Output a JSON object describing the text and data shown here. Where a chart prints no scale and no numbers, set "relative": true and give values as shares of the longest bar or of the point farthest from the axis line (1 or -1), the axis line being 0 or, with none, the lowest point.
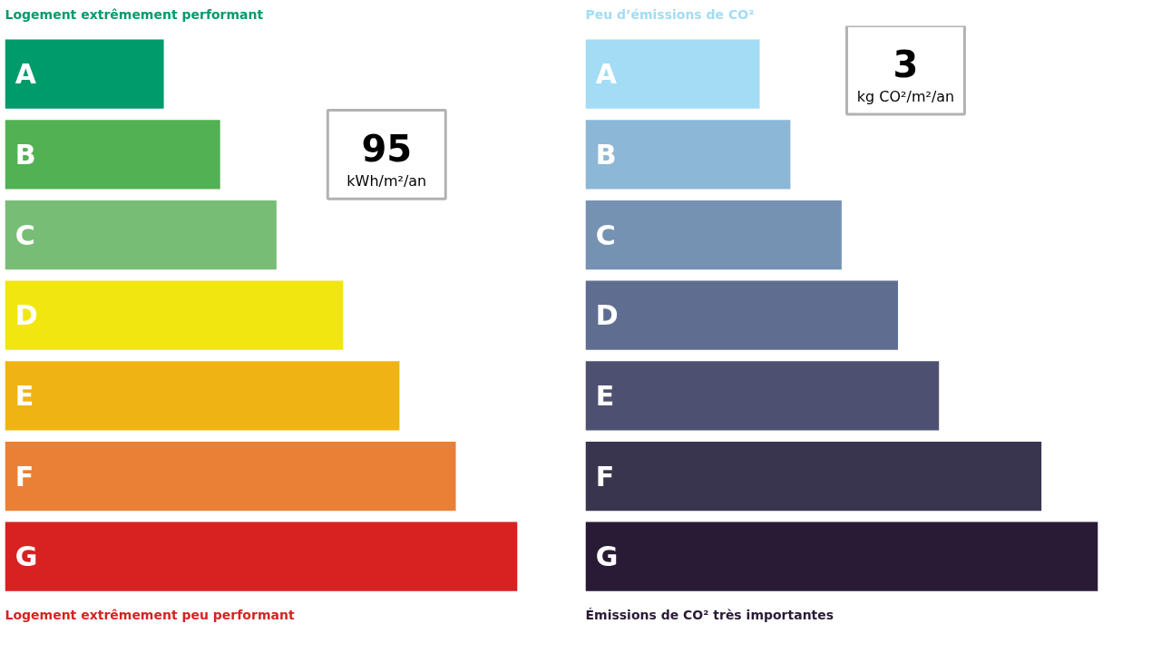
{
  "chart_data": [
    {
      "type": "bar",
      "orientation": "horizontal",
      "relative": true,
      "title": "Logement extrêmement performant",
      "categories": [
        "A",
        "B",
        "C",
        "D",
        "E",
        "F",
        "G"
      ],
      "values": [
        0.31,
        0.42,
        0.53,
        0.66,
        0.77,
        0.88,
        1
      ],
      "colors": [
        "#009b6b",
        "#52b153",
        "#78bd76",
        "#f2e611",
        "#efb414",
        "#ea8035",
        "#d72221"
      ],
      "annotations": [
        "Logement extrêmement peu performant",
        "95",
        "kWh/m²/an"
      ],
      "tick_labels": false
    },
    {
      "type": "bar",
      "orientation": "horizontal",
      "relative": true,
      "title": "Peu d’émissions de CO²",
      "categories": [
        "A",
        "B",
        "C",
        "D",
        "E",
        "F",
        "G"
      ],
      "values": [
        0.34,
        0.4,
        0.5,
        0.61,
        0.69,
        0.89,
        1
      ],
      "colors": [
        "#a3dcf4",
        "#8db7d6",
        "#7692b3",
        "#5f6e90",
        "#4d5070",
        "#39354f",
        "#291b36"
      ],
      "annotations": [
        "Émissions de CO² très importantes",
        "3",
        "kg CO²/m²/an"
      ],
      "tick_labels": false
    }
  ]
}
